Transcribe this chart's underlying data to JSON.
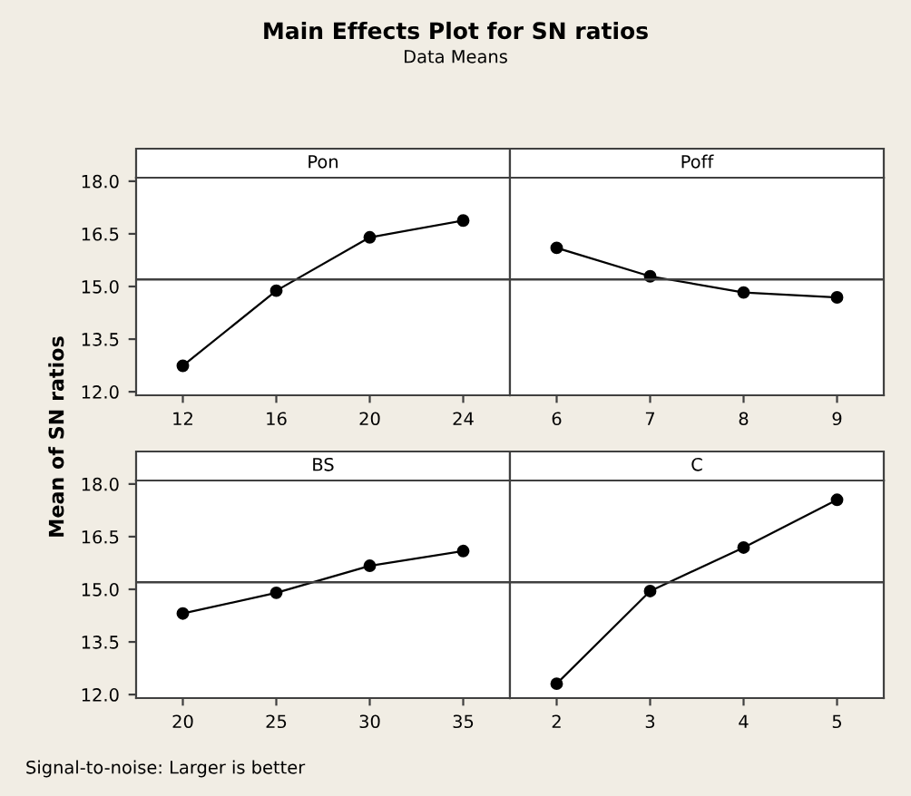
{
  "chart_data": [
    {
      "type": "line",
      "title": "Main Effects Plot for SN ratios",
      "subtitle": "Data Means",
      "ylabel": "Mean of SN ratios",
      "annotations": [
        "Signal-to-noise: Larger is better"
      ],
      "xlabel": "Pon",
      "x": [
        12,
        16,
        20,
        24
      ],
      "values": [
        12.74,
        14.88,
        16.4,
        16.88
      ],
      "xlim": [
        10,
        26
      ],
      "xticks": [
        12,
        16,
        20,
        24
      ],
      "ylim": [
        11.9,
        18.1
      ],
      "yticks": [
        {
          "value": 12,
          "label": "12.0"
        },
        {
          "value": 13.5,
          "label": "13.5"
        },
        {
          "value": 15,
          "label": "15.0"
        },
        {
          "value": 16.5,
          "label": "16.5"
        },
        {
          "value": 18,
          "label": "18.0"
        }
      ],
      "ref_lines": [
        {
          "axis": "y",
          "value": 15.2
        }
      ],
      "marker": "circle",
      "line_style": "solid",
      "color": "#000000"
    },
    {
      "type": "line",
      "xlabel": "Poff",
      "x": [
        6,
        7,
        8,
        9
      ],
      "values": [
        16.1,
        15.29,
        14.83,
        14.69
      ],
      "xlim": [
        5.5,
        9.5
      ],
      "xticks": [
        6,
        7,
        8,
        9
      ],
      "ylim": [
        11.9,
        18.1
      ],
      "ref_lines": [
        {
          "axis": "y",
          "value": 15.2
        }
      ],
      "tick_labels": "x",
      "marker": "circle",
      "line_style": "solid",
      "color": "#000000"
    },
    {
      "type": "line",
      "xlabel": "BS",
      "x": [
        20,
        25,
        30,
        35
      ],
      "values": [
        14.31,
        14.9,
        15.67,
        16.09
      ],
      "xlim": [
        17.5,
        37.5
      ],
      "xticks": [
        20,
        25,
        30,
        35
      ],
      "ylim": [
        11.9,
        18.1
      ],
      "yticks": [
        {
          "value": 12,
          "label": "12.0"
        },
        {
          "value": 13.5,
          "label": "13.5"
        },
        {
          "value": 15,
          "label": "15.0"
        },
        {
          "value": 16.5,
          "label": "16.5"
        },
        {
          "value": 18,
          "label": "18.0"
        }
      ],
      "ref_lines": [
        {
          "axis": "y",
          "value": 15.2
        }
      ],
      "marker": "circle",
      "line_style": "solid",
      "color": "#000000"
    },
    {
      "type": "line",
      "xlabel": "C",
      "x": [
        2,
        3,
        4,
        5
      ],
      "values": [
        12.31,
        14.95,
        16.19,
        17.55
      ],
      "xlim": [
        1.5,
        5.5
      ],
      "xticks": [
        2,
        3,
        4,
        5
      ],
      "ylim": [
        11.9,
        18.1
      ],
      "ref_lines": [
        {
          "axis": "y",
          "value": 15.2
        }
      ],
      "tick_labels": "x",
      "marker": "circle",
      "line_style": "solid",
      "color": "#000000"
    }
  ]
}
